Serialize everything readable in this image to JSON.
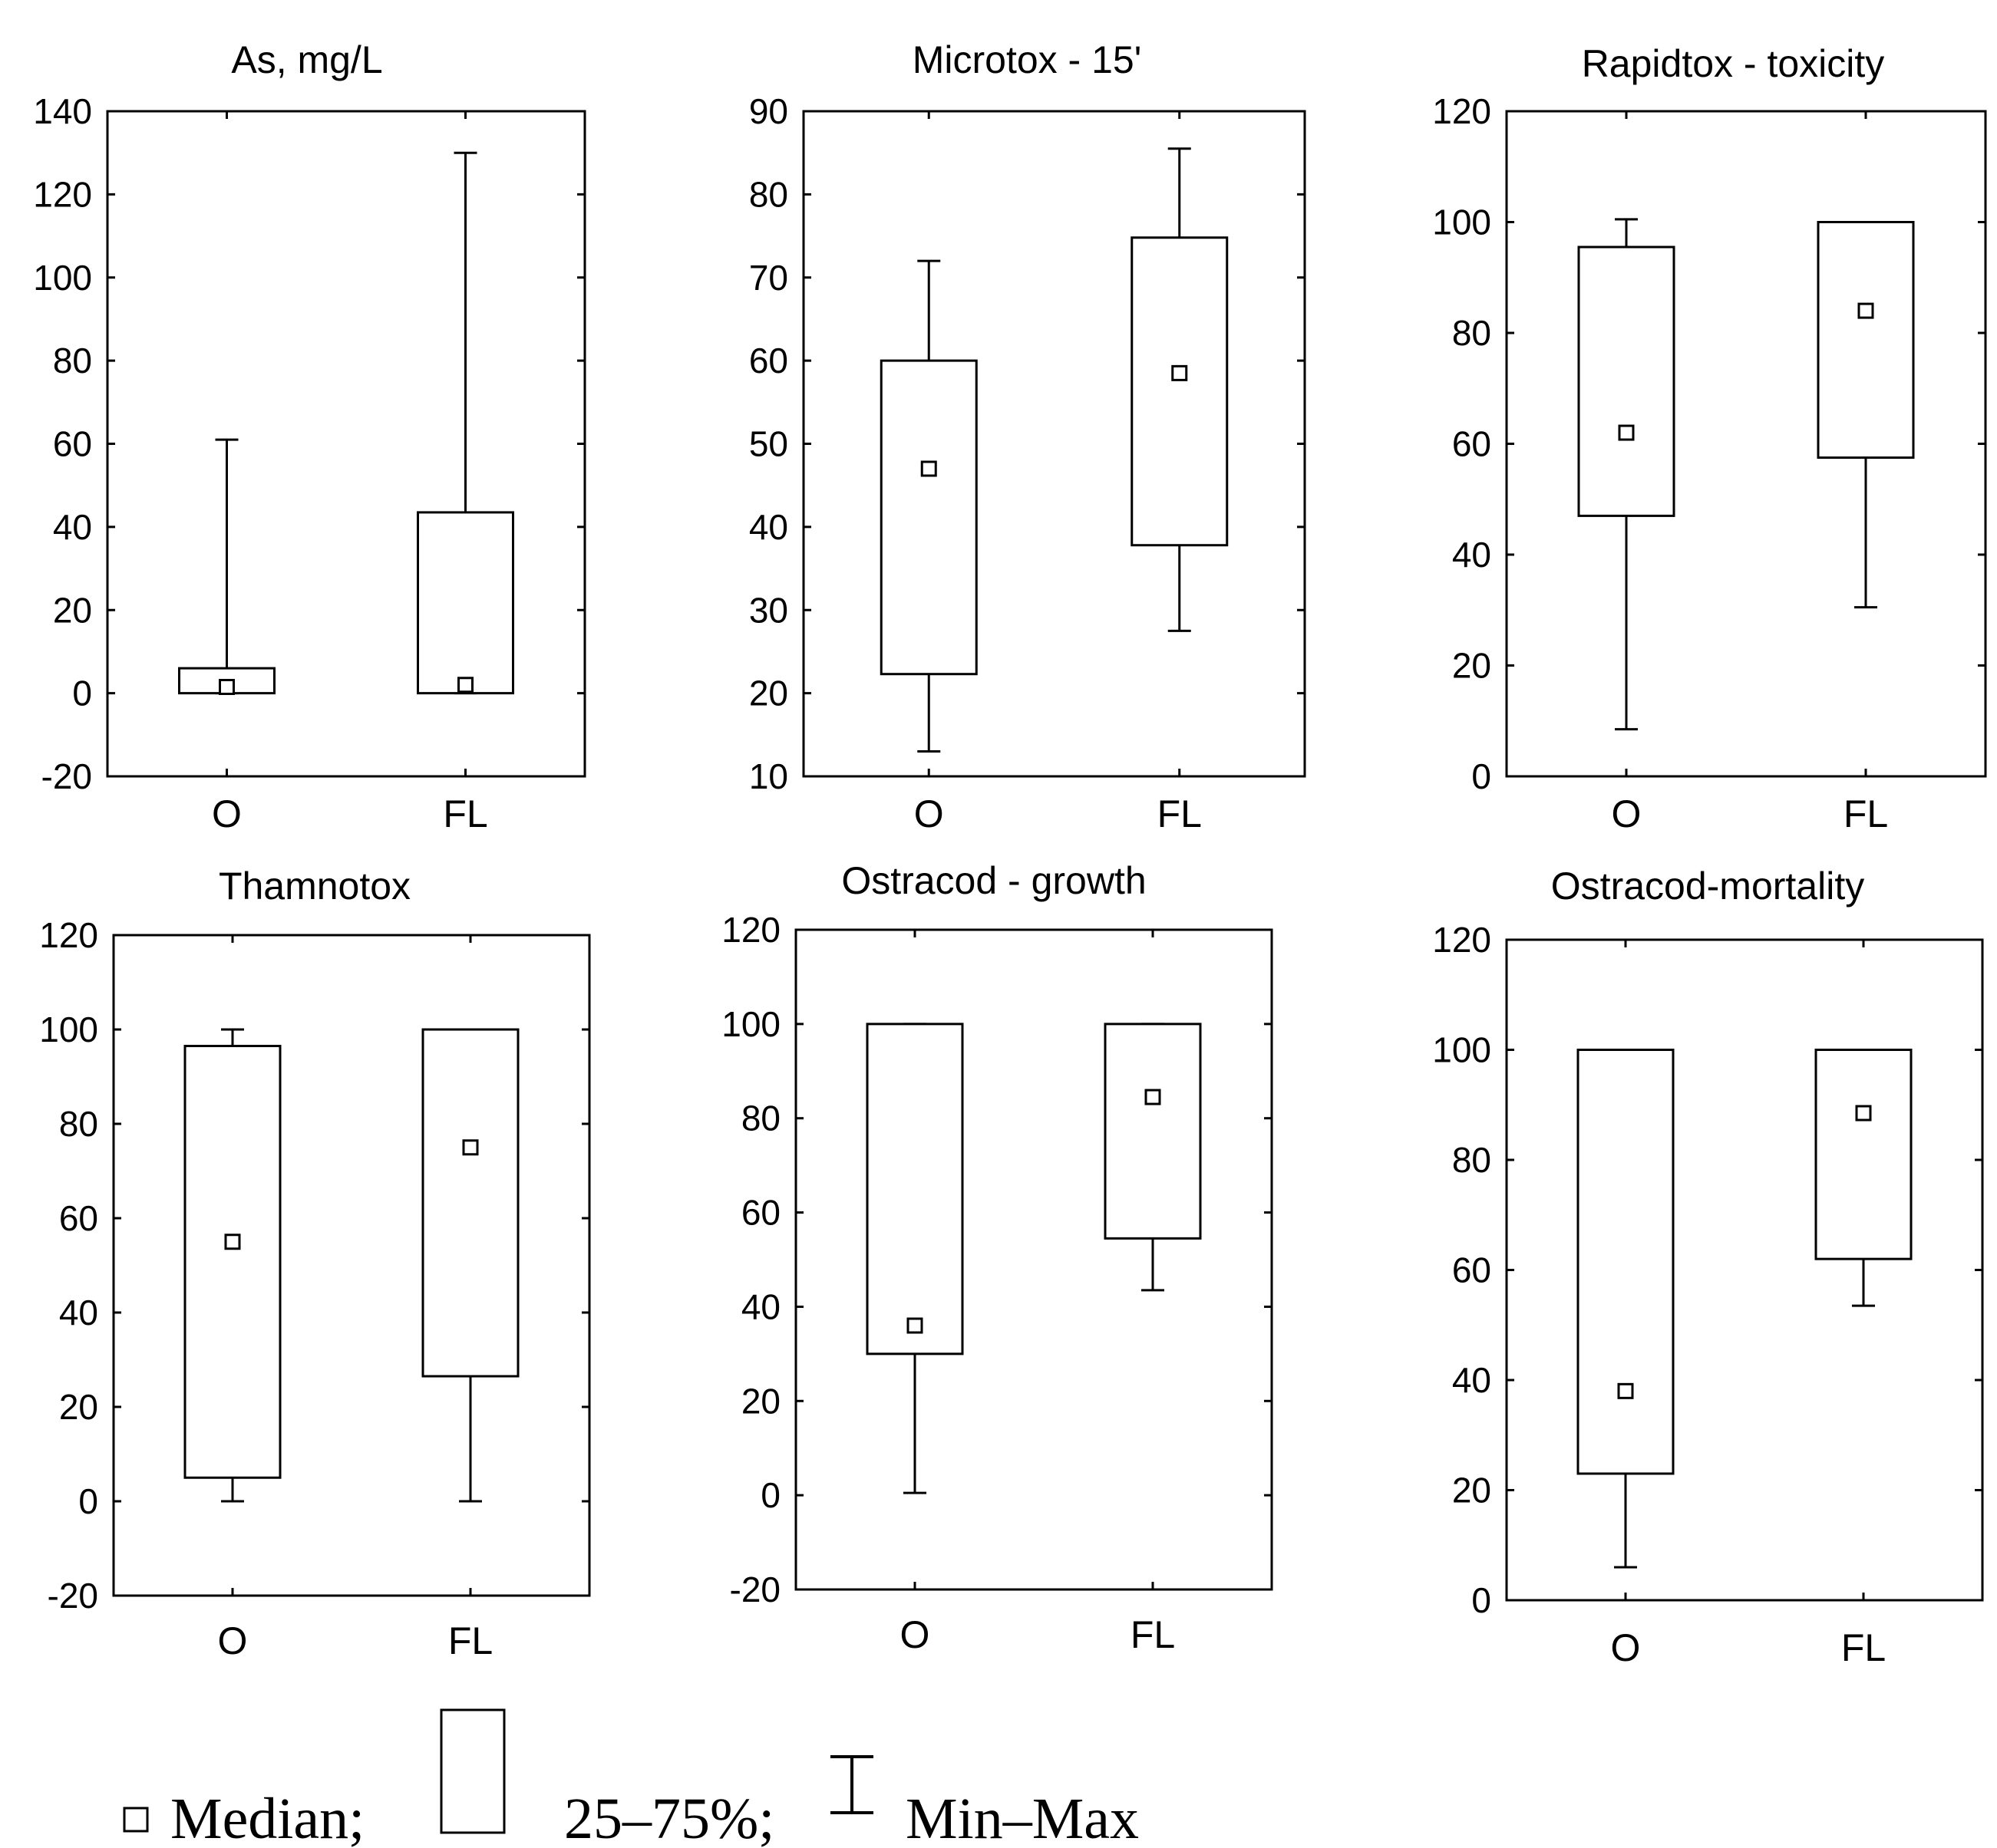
{
  "chart_data": [
    {
      "type": "boxplot",
      "title": "As, mg/L",
      "categories": [
        "O",
        "FL"
      ],
      "ylim": [
        -20,
        140
      ],
      "yticks": [
        -20,
        0,
        20,
        40,
        60,
        80,
        100,
        120,
        140
      ],
      "series": [
        {
          "name": "O",
          "min": 0,
          "q1": 0,
          "median": 1.5,
          "q3": 6,
          "max": 61
        },
        {
          "name": "FL",
          "min": 0,
          "q1": 0,
          "median": 2,
          "q3": 43.5,
          "max": 130
        }
      ]
    },
    {
      "type": "boxplot",
      "title": "Microtox - 15'",
      "categories": [
        "O",
        "FL"
      ],
      "ylim": [
        10,
        90
      ],
      "yticks": [
        10,
        20,
        30,
        40,
        50,
        60,
        70,
        80,
        90
      ],
      "series": [
        {
          "name": "O",
          "min": 13,
          "q1": 22.3,
          "median": 47,
          "q3": 60,
          "max": 72
        },
        {
          "name": "FL",
          "min": 27.5,
          "q1": 37.8,
          "median": 58.5,
          "q3": 74.8,
          "max": 85.5
        }
      ]
    },
    {
      "type": "boxplot",
      "title": "Rapidtox - toxicity",
      "categories": [
        "O",
        "FL"
      ],
      "ylim": [
        0,
        120
      ],
      "yticks": [
        0,
        20,
        40,
        60,
        80,
        100,
        120
      ],
      "series": [
        {
          "name": "O",
          "min": 8.5,
          "q1": 47,
          "median": 62,
          "q3": 95.5,
          "max": 100.5
        },
        {
          "name": "FL",
          "min": 30.5,
          "q1": 57.5,
          "median": 84,
          "q3": 100,
          "max": 100
        }
      ]
    },
    {
      "type": "boxplot",
      "title": "Thamnotox",
      "categories": [
        "O",
        "FL"
      ],
      "ylim": [
        -20,
        120
      ],
      "yticks": [
        -20,
        0,
        20,
        40,
        60,
        80,
        100,
        120
      ],
      "series": [
        {
          "name": "O",
          "min": 0,
          "q1": 5,
          "median": 55,
          "q3": 96.5,
          "max": 100
        },
        {
          "name": "FL",
          "min": 0,
          "q1": 26.5,
          "median": 75,
          "q3": 100,
          "max": 100
        }
      ]
    },
    {
      "type": "boxplot",
      "title": "Ostracod - growth",
      "categories": [
        "O",
        "FL"
      ],
      "ylim": [
        -20,
        120
      ],
      "yticks": [
        -20,
        0,
        20,
        40,
        60,
        80,
        100,
        120
      ],
      "series": [
        {
          "name": "O",
          "min": 0.5,
          "q1": 30,
          "median": 36,
          "q3": 100,
          "max": 100
        },
        {
          "name": "FL",
          "min": 43.5,
          "q1": 54.5,
          "median": 84.5,
          "q3": 100,
          "max": 100
        }
      ]
    },
    {
      "type": "boxplot",
      "title": "Ostracod-mortality",
      "categories": [
        "O",
        "FL"
      ],
      "ylim": [
        0,
        120
      ],
      "yticks": [
        0,
        20,
        40,
        60,
        80,
        100,
        120
      ],
      "series": [
        {
          "name": "O",
          "min": 6,
          "q1": 23,
          "median": 38,
          "q3": 100,
          "max": 100
        },
        {
          "name": "FL",
          "min": 53.5,
          "q1": 62,
          "median": 88.5,
          "q3": 100,
          "max": 100
        }
      ]
    }
  ],
  "legend": {
    "median": "Median;",
    "box": "25–75%;",
    "whisker": "Min–Max"
  }
}
